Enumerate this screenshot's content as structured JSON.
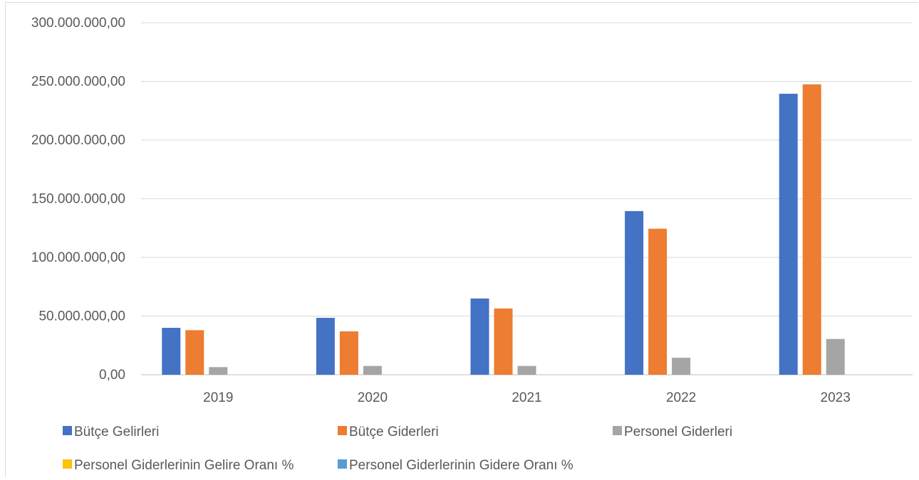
{
  "chart_data": {
    "type": "bar",
    "categories": [
      "2019",
      "2020",
      "2021",
      "2022",
      "2023"
    ],
    "series": [
      {
        "name": "Bütçe Gelirleri",
        "color": "#4472C4",
        "values": [
          40000000,
          48500000,
          65000000,
          139500000,
          239500000
        ]
      },
      {
        "name": "Bütçe Giderleri",
        "color": "#ED7D31",
        "values": [
          38000000,
          37000000,
          56500000,
          124500000,
          247500000
        ]
      },
      {
        "name": "Personel Giderleri",
        "color": "#A5A5A5",
        "values": [
          6500000,
          7500000,
          7500000,
          14500000,
          30500000
        ]
      },
      {
        "name": "Personel Giderlerinin Gelire Oranı %",
        "color": "#FFC000",
        "values": [
          0,
          0,
          0,
          0,
          0
        ]
      },
      {
        "name": "Personel Giderlerinin Gidere Oranı %",
        "color": "#5B9BD5",
        "values": [
          0,
          0,
          0,
          0,
          0
        ]
      }
    ],
    "y_ticks": [
      "0,00",
      "50.000.000,00",
      "100.000.000,00",
      "150.000.000,00",
      "200.000.000,00",
      "250.000.000,00",
      "300.000.000,00"
    ],
    "ylim": [
      0,
      300000000
    ],
    "grid": true,
    "legend_position": "bottom",
    "title": "",
    "xlabel": "",
    "ylabel": ""
  }
}
